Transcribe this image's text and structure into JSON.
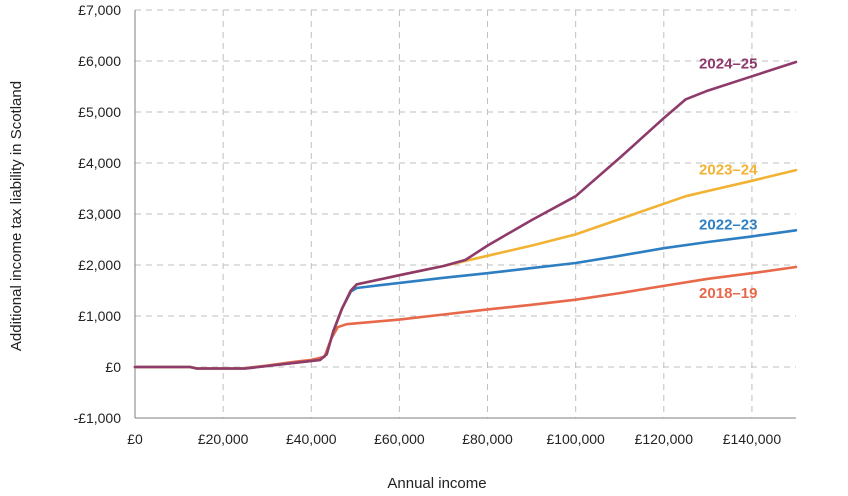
{
  "chart_data": {
    "type": "line",
    "title": "",
    "xlabel": "Annual income",
    "ylabel": "Additional income tax liability in Scotland",
    "xlim": [
      0,
      150000
    ],
    "ylim": [
      -1000,
      7000
    ],
    "grid": true,
    "legend": "inline labels at right",
    "x_ticks": [
      {
        "value": 0,
        "label": "£0"
      },
      {
        "value": 20000,
        "label": "£20,000"
      },
      {
        "value": 40000,
        "label": "£40,000"
      },
      {
        "value": 60000,
        "label": "£60,000"
      },
      {
        "value": 80000,
        "label": "£80,000"
      },
      {
        "value": 100000,
        "label": "£100,000"
      },
      {
        "value": 120000,
        "label": "£120,000"
      },
      {
        "value": 140000,
        "label": "£140,000"
      }
    ],
    "y_ticks": [
      {
        "value": -1000,
        "label": "-£1,000"
      },
      {
        "value": 0,
        "label": "£0"
      },
      {
        "value": 1000,
        "label": "£1,000"
      },
      {
        "value": 2000,
        "label": "£2,000"
      },
      {
        "value": 3000,
        "label": "£3,000"
      },
      {
        "value": 4000,
        "label": "£4,000"
      },
      {
        "value": 5000,
        "label": "£5,000"
      },
      {
        "value": 6000,
        "label": "£6,000"
      },
      {
        "value": 7000,
        "label": "£7,000"
      }
    ],
    "series": [
      {
        "name": "2018–19",
        "color": "#E8684A",
        "x": [
          0,
          12500,
          14000,
          20000,
          24000,
          30000,
          36000,
          40000,
          43000,
          44500,
          46000,
          48000,
          60000,
          70000,
          80000,
          90000,
          100000,
          110000,
          120000,
          130000,
          140000,
          150000
        ],
        "y": [
          0,
          0,
          -30,
          -30,
          -30,
          30,
          100,
          140,
          200,
          550,
          780,
          840,
          930,
          1030,
          1130,
          1220,
          1320,
          1450,
          1590,
          1730,
          1840,
          1960
        ]
      },
      {
        "name": "2022–23",
        "color": "#2E7EC2",
        "x": [
          0,
          12500,
          14000,
          20000,
          25000,
          30000,
          36000,
          42000,
          43500,
          45000,
          47000,
          49000,
          50300,
          60000,
          70000,
          80000,
          90000,
          100000,
          110000,
          120000,
          130000,
          140000,
          150000
        ],
        "y": [
          0,
          0,
          -30,
          -30,
          -30,
          20,
          80,
          140,
          250,
          700,
          1150,
          1480,
          1550,
          1650,
          1750,
          1840,
          1940,
          2040,
          2180,
          2330,
          2450,
          2560,
          2680
        ]
      },
      {
        "name": "2023–24",
        "color": "#F2B233",
        "x": [
          0,
          12500,
          14000,
          20000,
          25000,
          30000,
          36000,
          42000,
          43500,
          45000,
          47000,
          49000,
          50300,
          60000,
          70000,
          80000,
          90000,
          100000,
          110000,
          120000,
          125000,
          130000,
          140000,
          150000
        ],
        "y": [
          0,
          0,
          -30,
          -30,
          -30,
          20,
          80,
          140,
          250,
          700,
          1150,
          1500,
          1620,
          1800,
          1980,
          2180,
          2380,
          2600,
          2900,
          3200,
          3350,
          3450,
          3650,
          3860
        ]
      },
      {
        "name": "2024–25",
        "color": "#8E3A6B",
        "x": [
          0,
          12500,
          14000,
          20000,
          25000,
          30000,
          36000,
          42000,
          43500,
          45000,
          47000,
          49000,
          50300,
          60000,
          70000,
          75000,
          80000,
          90000,
          100000,
          110000,
          120000,
          125000,
          130000,
          140000,
          150000
        ],
        "y": [
          0,
          0,
          -30,
          -30,
          -30,
          20,
          80,
          140,
          250,
          700,
          1150,
          1500,
          1620,
          1800,
          1980,
          2100,
          2380,
          2880,
          3350,
          4100,
          4880,
          5250,
          5420,
          5700,
          5980
        ]
      }
    ],
    "series_labels": [
      {
        "series": 3,
        "text": "2024–25",
        "x": 128000,
        "y": 5850
      },
      {
        "series": 2,
        "text": "2023–24",
        "x": 128000,
        "y": 3770
      },
      {
        "series": 1,
        "text": "2022–23",
        "x": 128000,
        "y": 2700
      },
      {
        "series": 0,
        "text": "2018–19",
        "x": 128000,
        "y": 1350
      }
    ],
    "gridline_color": "#BFBFBF",
    "axis_color": "#7F7F7F"
  }
}
